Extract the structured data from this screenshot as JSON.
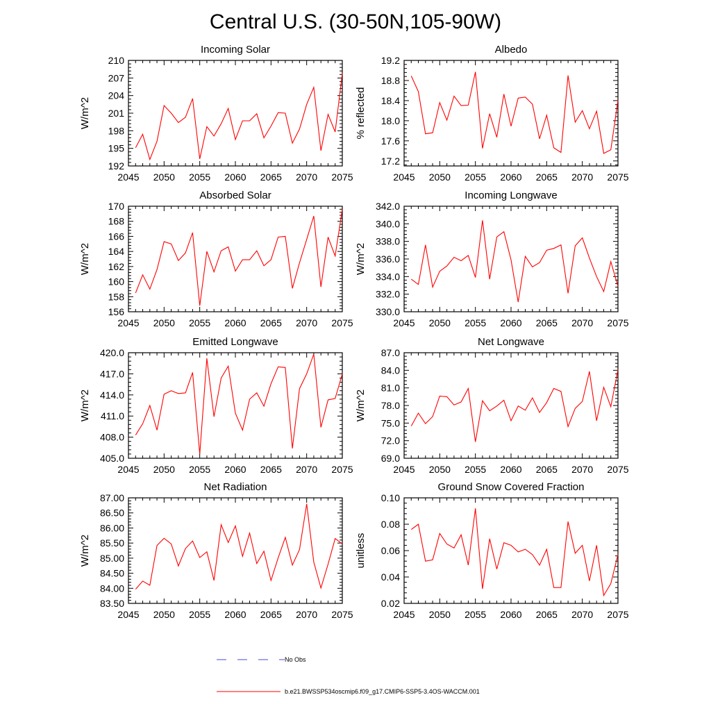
{
  "figure_title": "Central U.S. (30-50N,105-90W)",
  "colors": {
    "model": "#ff0000",
    "obs": "#4a4ad6",
    "axis": "#000000"
  },
  "legend": {
    "obs_label": "No Obs",
    "model_label": "b.e21.BWSSP534oscmip6.f09_g17.CMIP6-SSP5-3.4OS-WACCM.001"
  },
  "chart_data": [
    {
      "type": "line",
      "title": "Incoming Solar",
      "ylabel": "W/m^2",
      "xlim": [
        2045,
        2075
      ],
      "ylim": [
        192,
        210
      ],
      "xticks": [
        2045,
        2050,
        2055,
        2060,
        2065,
        2070,
        2075
      ],
      "yticks": [
        "192",
        "195",
        "198",
        "201",
        "204",
        "207",
        "210"
      ],
      "x": [
        2046,
        2047,
        2048,
        2049,
        2050,
        2051,
        2052,
        2053,
        2054,
        2055,
        2056,
        2057,
        2058,
        2059,
        2060,
        2061,
        2062,
        2063,
        2064,
        2065,
        2066,
        2067,
        2068,
        2069,
        2070,
        2071,
        2072,
        2073,
        2074,
        2075
      ],
      "series": [
        {
          "name": "b.e21.BWSSP534oscmip6.f09_g17.CMIP6-SSP5-3.4OS-WACCM.001",
          "values": [
            195.1,
            197.4,
            193.1,
            196.2,
            202.3,
            201.0,
            199.4,
            200.3,
            203.5,
            193.2,
            198.7,
            197.1,
            199.2,
            201.8,
            196.5,
            199.7,
            199.7,
            200.9,
            196.8,
            198.8,
            201.1,
            201.0,
            195.9,
            198.3,
            202.5,
            205.4,
            194.6,
            200.8,
            197.8,
            207.8
          ]
        }
      ]
    },
    {
      "type": "line",
      "title": "Albedo",
      "ylabel": "% reflected",
      "xlim": [
        2045,
        2075
      ],
      "ylim": [
        17.1,
        19.2
      ],
      "xticks": [
        2045,
        2050,
        2055,
        2060,
        2065,
        2070,
        2075
      ],
      "yticks": [
        "17.2",
        "17.6",
        "18.0",
        "18.4",
        "18.8",
        "19.2"
      ],
      "x": [
        2046,
        2047,
        2048,
        2049,
        2050,
        2051,
        2052,
        2053,
        2054,
        2055,
        2056,
        2057,
        2058,
        2059,
        2060,
        2061,
        2062,
        2063,
        2064,
        2065,
        2066,
        2067,
        2068,
        2069,
        2070,
        2071,
        2072,
        2073,
        2074,
        2075
      ],
      "series": [
        {
          "name": "b.e21.BWSSP534oscmip6.f09_g17.CMIP6-SSP5-3.4OS-WACCM.001",
          "values": [
            18.89,
            18.58,
            17.74,
            17.76,
            18.36,
            18.01,
            18.49,
            18.3,
            18.31,
            18.97,
            17.45,
            18.14,
            17.67,
            18.53,
            17.89,
            18.45,
            18.47,
            18.33,
            17.64,
            18.11,
            17.46,
            17.37,
            18.9,
            17.97,
            18.2,
            17.84,
            18.19,
            17.35,
            17.42,
            18.41
          ]
        }
      ]
    },
    {
      "type": "line",
      "title": "Absorbed Solar",
      "ylabel": "W/m^2",
      "xlim": [
        2045,
        2075
      ],
      "ylim": [
        156,
        170
      ],
      "xticks": [
        2045,
        2050,
        2055,
        2060,
        2065,
        2070,
        2075
      ],
      "yticks": [
        "156",
        "158",
        "160",
        "162",
        "164",
        "166",
        "168",
        "170"
      ],
      "x": [
        2046,
        2047,
        2048,
        2049,
        2050,
        2051,
        2052,
        2053,
        2054,
        2055,
        2056,
        2057,
        2058,
        2059,
        2060,
        2061,
        2062,
        2063,
        2064,
        2065,
        2066,
        2067,
        2068,
        2069,
        2070,
        2071,
        2072,
        2073,
        2074,
        2075
      ],
      "series": [
        {
          "name": "b.e21.BWSSP534oscmip6.f09_g17.CMIP6-SSP5-3.4OS-WACCM.001",
          "values": [
            158.5,
            160.9,
            159.0,
            161.6,
            165.3,
            165.0,
            162.8,
            163.8,
            166.5,
            156.8,
            164.0,
            161.3,
            164.1,
            164.6,
            161.4,
            162.9,
            162.9,
            164.1,
            162.1,
            162.9,
            165.9,
            166.0,
            159.1,
            162.5,
            165.6,
            168.7,
            159.3,
            165.9,
            163.4,
            169.6
          ]
        }
      ]
    },
    {
      "type": "line",
      "title": "Incoming Longwave",
      "ylabel": "W/m^2",
      "xlim": [
        2045,
        2075
      ],
      "ylim": [
        330.0,
        342.0
      ],
      "xticks": [
        2045,
        2050,
        2055,
        2060,
        2065,
        2070,
        2075
      ],
      "yticks": [
        "330.0",
        "332.0",
        "334.0",
        "336.0",
        "338.0",
        "340.0",
        "342.0"
      ],
      "x": [
        2046,
        2047,
        2048,
        2049,
        2050,
        2051,
        2052,
        2053,
        2054,
        2055,
        2056,
        2057,
        2058,
        2059,
        2060,
        2061,
        2062,
        2063,
        2064,
        2065,
        2066,
        2067,
        2068,
        2069,
        2070,
        2071,
        2072,
        2073,
        2074,
        2075
      ],
      "series": [
        {
          "name": "b.e21.BWSSP534oscmip6.f09_g17.CMIP6-SSP5-3.4OS-WACCM.001",
          "values": [
            333.7,
            333.1,
            337.6,
            332.8,
            334.6,
            335.2,
            336.2,
            335.8,
            336.4,
            333.9,
            340.4,
            333.7,
            338.5,
            339.1,
            335.9,
            331.1,
            336.3,
            335.1,
            335.6,
            337.0,
            337.2,
            337.6,
            332.1,
            337.5,
            338.4,
            336.1,
            334.0,
            332.3,
            335.7,
            332.9
          ]
        }
      ]
    },
    {
      "type": "line",
      "title": "Emitted Longwave",
      "ylabel": "W/m^2",
      "xlim": [
        2045,
        2075
      ],
      "ylim": [
        405.0,
        420.0
      ],
      "xticks": [
        2045,
        2050,
        2055,
        2060,
        2065,
        2070,
        2075
      ],
      "yticks": [
        "405.0",
        "408.0",
        "411.0",
        "414.0",
        "417.0",
        "420.0"
      ],
      "x": [
        2046,
        2047,
        2048,
        2049,
        2050,
        2051,
        2052,
        2053,
        2054,
        2055,
        2056,
        2057,
        2058,
        2059,
        2060,
        2061,
        2062,
        2063,
        2064,
        2065,
        2066,
        2067,
        2068,
        2069,
        2070,
        2071,
        2072,
        2073,
        2074,
        2075
      ],
      "series": [
        {
          "name": "b.e21.BWSSP534oscmip6.f09_g17.CMIP6-SSP5-3.4OS-WACCM.001",
          "values": [
            408.3,
            409.9,
            412.5,
            409.0,
            414.1,
            414.6,
            414.2,
            414.3,
            417.2,
            405.6,
            419.2,
            410.9,
            416.4,
            418.1,
            411.4,
            409.0,
            413.4,
            414.3,
            412.4,
            415.6,
            418.0,
            417.9,
            406.4,
            414.9,
            417.0,
            419.8,
            409.4,
            413.3,
            413.5,
            417.0
          ]
        }
      ]
    },
    {
      "type": "line",
      "title": "Net Longwave",
      "ylabel": "W/m^2",
      "xlim": [
        2045,
        2075
      ],
      "ylim": [
        69.0,
        87.0
      ],
      "xticks": [
        2045,
        2050,
        2055,
        2060,
        2065,
        2070,
        2075
      ],
      "yticks": [
        "69.0",
        "72.0",
        "75.0",
        "78.0",
        "81.0",
        "84.0",
        "87.0"
      ],
      "x": [
        2046,
        2047,
        2048,
        2049,
        2050,
        2051,
        2052,
        2053,
        2054,
        2055,
        2056,
        2057,
        2058,
        2059,
        2060,
        2061,
        2062,
        2063,
        2064,
        2065,
        2066,
        2067,
        2068,
        2069,
        2070,
        2071,
        2072,
        2073,
        2074,
        2075
      ],
      "series": [
        {
          "name": "b.e21.BWSSP534oscmip6.f09_g17.CMIP6-SSP5-3.4OS-WACCM.001",
          "values": [
            74.5,
            76.7,
            74.9,
            76.1,
            79.6,
            79.5,
            78.1,
            78.6,
            80.9,
            71.8,
            78.8,
            77.1,
            77.9,
            78.9,
            75.4,
            77.9,
            77.2,
            79.3,
            76.8,
            78.5,
            80.9,
            80.4,
            74.4,
            77.5,
            78.7,
            83.8,
            75.4,
            81.1,
            77.8,
            84.1
          ]
        }
      ]
    },
    {
      "type": "line",
      "title": "Net Radiation",
      "ylabel": "W/m^2",
      "xlim": [
        2045,
        2075
      ],
      "ylim": [
        83.5,
        87.0
      ],
      "xticks": [
        2045,
        2050,
        2055,
        2060,
        2065,
        2070,
        2075
      ],
      "yticks": [
        "83.50",
        "84.00",
        "84.50",
        "85.00",
        "85.50",
        "86.00",
        "86.50",
        "87.00"
      ],
      "x": [
        2046,
        2047,
        2048,
        2049,
        2050,
        2051,
        2052,
        2053,
        2054,
        2055,
        2056,
        2057,
        2058,
        2059,
        2060,
        2061,
        2062,
        2063,
        2064,
        2065,
        2066,
        2067,
        2068,
        2069,
        2070,
        2071,
        2072,
        2073,
        2074,
        2075
      ],
      "series": [
        {
          "name": "b.e21.BWSSP534oscmip6.f09_g17.CMIP6-SSP5-3.4OS-WACCM.001",
          "values": [
            83.97,
            84.24,
            84.1,
            85.42,
            85.66,
            85.47,
            84.74,
            85.32,
            85.57,
            85.02,
            85.21,
            84.26,
            86.11,
            85.52,
            86.07,
            85.06,
            85.83,
            84.82,
            85.23,
            84.26,
            85.01,
            85.69,
            84.77,
            85.29,
            86.8,
            84.87,
            84.01,
            84.8,
            85.65,
            85.47
          ]
        }
      ]
    },
    {
      "type": "line",
      "title": "Ground Snow Covered Fraction",
      "ylabel": "unitless",
      "xlim": [
        2045,
        2075
      ],
      "ylim": [
        0.02,
        0.1
      ],
      "xticks": [
        2045,
        2050,
        2055,
        2060,
        2065,
        2070,
        2075
      ],
      "yticks": [
        "0.02",
        "0.04",
        "0.06",
        "0.08",
        "0.10"
      ],
      "x": [
        2046,
        2047,
        2048,
        2049,
        2050,
        2051,
        2052,
        2053,
        2054,
        2055,
        2056,
        2057,
        2058,
        2059,
        2060,
        2061,
        2062,
        2063,
        2064,
        2065,
        2066,
        2067,
        2068,
        2069,
        2070,
        2071,
        2072,
        2073,
        2074,
        2075
      ],
      "series": [
        {
          "name": "b.e21.BWSSP534oscmip6.f09_g17.CMIP6-SSP5-3.4OS-WACCM.001",
          "values": [
            0.076,
            0.08,
            0.052,
            0.053,
            0.073,
            0.065,
            0.062,
            0.072,
            0.049,
            0.092,
            0.031,
            0.069,
            0.046,
            0.066,
            0.064,
            0.059,
            0.061,
            0.057,
            0.049,
            0.061,
            0.032,
            0.032,
            0.082,
            0.058,
            0.064,
            0.037,
            0.064,
            0.026,
            0.035,
            0.057
          ]
        }
      ]
    }
  ]
}
